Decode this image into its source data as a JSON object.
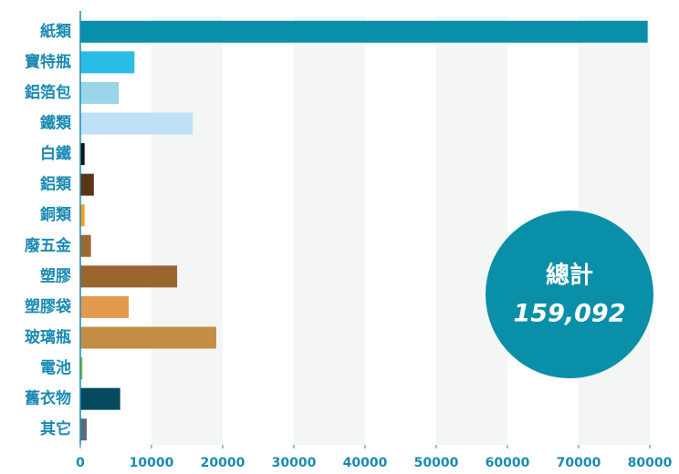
{
  "chart_data": {
    "type": "bar",
    "orientation": "horizontal",
    "categories": [
      "紙類",
      "寶特瓶",
      "鋁箔包",
      "鐵類",
      "白鐵",
      "鋁類",
      "銅類",
      "廢五金",
      "塑膠",
      "塑膠袋",
      "玻璃瓶",
      "電池",
      "舊衣物",
      "其它"
    ],
    "values": [
      79700,
      7600,
      5400,
      15800,
      600,
      1900,
      600,
      1500,
      13600,
      6800,
      19100,
      300,
      5600,
      900
    ],
    "colors": [
      "#0a8fab",
      "#29bde6",
      "#9ad6ea",
      "#bfe0f5",
      "#111111",
      "#5a3615",
      "#f0a21e",
      "#9b6a34",
      "#9b6530",
      "#e49a4e",
      "#c48d45",
      "#7dc341",
      "#064a5e",
      "#5d6a7a"
    ],
    "xlim": [
      0,
      80000
    ],
    "xticks": [
      0,
      10000,
      20000,
      30000,
      40000,
      50000,
      60000,
      70000,
      80000
    ],
    "annotation": {
      "title": "總計",
      "value": "159,092"
    }
  }
}
